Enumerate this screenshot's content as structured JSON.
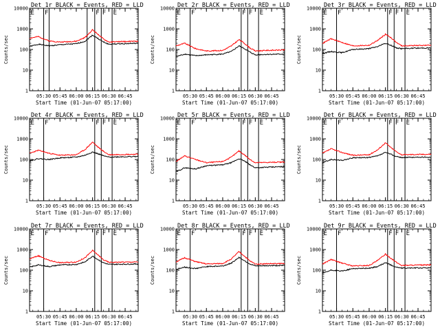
{
  "figure": {
    "background": "#ffffff",
    "panel_title_template": "Det {det} BLACK = Events, RED = LLD",
    "ylabel": "Counts/sec",
    "xlabel": "Start Time (01-Jun-07 05:17:00)"
  },
  "chart_data": [
    {
      "type": "line",
      "title": "Det 1r BLACK = Events, RED = LLD",
      "xlabel": "Start Time (01-Jun-07 05:17:00)",
      "ylabel": "Counts/sec",
      "yscale": "log",
      "xlim": [
        "05:17",
        "06:57"
      ],
      "ylim": [
        1,
        10000
      ],
      "x_ticks": [
        "05:30",
        "05:45",
        "06:00",
        "06:15",
        "06:30",
        "06:45"
      ],
      "y_ticks": [
        "1",
        "10",
        "100",
        "1000",
        "10000"
      ],
      "markers": [
        {
          "time": "05:17",
          "label": "E"
        },
        {
          "time": "05:30",
          "label": "F"
        },
        {
          "time": "05:35",
          "label": ""
        },
        {
          "time": "06:10",
          "label": ""
        },
        {
          "time": "06:17",
          "label": "F"
        },
        {
          "time": "06:23",
          "label": "F"
        },
        {
          "time": "06:33",
          "label": "E"
        }
      ],
      "series": [
        {
          "color": "#000000",
          "time": [
            "05:17",
            "05:25",
            "05:35",
            "05:45",
            "06:00",
            "06:08",
            "06:15",
            "06:20",
            "06:25",
            "06:30",
            "06:40",
            "06:57"
          ],
          "values": [
            140,
            180,
            150,
            170,
            190,
            250,
            500,
            340,
            230,
            180,
            190,
            200
          ]
        },
        {
          "color": "#ff0000",
          "time": [
            "05:17",
            "05:25",
            "05:35",
            "05:45",
            "06:00",
            "06:08",
            "06:15",
            "06:20",
            "06:25",
            "06:30",
            "06:40",
            "06:57"
          ],
          "values": [
            350,
            420,
            260,
            230,
            250,
            380,
            900,
            550,
            320,
            230,
            240,
            250
          ]
        }
      ]
    },
    {
      "type": "line",
      "title": "Det 2r BLACK = Events, RED = LLD",
      "xlabel": "Start Time (01-Jun-07 05:17:00)",
      "ylabel": "Counts/sec",
      "yscale": "log",
      "xlim": [
        "05:17",
        "06:57"
      ],
      "ylim": [
        1,
        10000
      ],
      "x_ticks": [
        "05:30",
        "05:45",
        "06:00",
        "06:15",
        "06:30",
        "06:45"
      ],
      "y_ticks": [
        "1",
        "10",
        "100",
        "1000",
        "10000"
      ],
      "markers": [
        {
          "time": "05:17",
          "label": "E"
        },
        {
          "time": "05:30",
          "label": "F"
        },
        {
          "time": "06:17",
          "label": "F"
        },
        {
          "time": "06:23",
          "label": "F"
        },
        {
          "time": "06:33",
          "label": "E"
        }
      ],
      "series": [
        {
          "color": "#000000",
          "time": [
            "05:17",
            "05:25",
            "05:35",
            "05:45",
            "06:00",
            "06:08",
            "06:15",
            "06:20",
            "06:25",
            "06:30",
            "06:40",
            "06:57"
          ],
          "values": [
            45,
            60,
            50,
            55,
            60,
            80,
            150,
            110,
            75,
            55,
            58,
            60
          ]
        },
        {
          "color": "#ff0000",
          "time": [
            "05:17",
            "05:25",
            "05:35",
            "05:45",
            "06:00",
            "06:08",
            "06:15",
            "06:20",
            "06:25",
            "06:30",
            "06:40",
            "06:57"
          ],
          "values": [
            150,
            200,
            110,
            85,
            90,
            150,
            300,
            200,
            120,
            85,
            90,
            95
          ]
        }
      ]
    },
    {
      "type": "line",
      "title": "Det 3r BLACK = Events, RED = LLD",
      "xlabel": "Start Time (01-Jun-07 05:17:00)",
      "ylabel": "Counts/sec",
      "yscale": "log",
      "xlim": [
        "05:17",
        "06:57"
      ],
      "ylim": [
        1,
        10000
      ],
      "x_ticks": [
        "05:30",
        "05:45",
        "06:00",
        "06:15",
        "06:30",
        "06:45"
      ],
      "y_ticks": [
        "1",
        "10",
        "100",
        "1000",
        "10000"
      ],
      "markers": [
        {
          "time": "05:17",
          "label": "E"
        },
        {
          "time": "05:30",
          "label": "F"
        },
        {
          "time": "06:17",
          "label": "F"
        },
        {
          "time": "06:23",
          "label": "F"
        },
        {
          "time": "06:33",
          "label": "E"
        }
      ],
      "series": [
        {
          "color": "#000000",
          "time": [
            "05:17",
            "05:25",
            "05:35",
            "05:45",
            "06:00",
            "06:08",
            "06:15",
            "06:20",
            "06:25",
            "06:30",
            "06:40",
            "06:57"
          ],
          "values": [
            65,
            80,
            70,
            100,
            110,
            140,
            200,
            160,
            120,
            110,
            115,
            120
          ]
        },
        {
          "color": "#ff0000",
          "time": [
            "05:17",
            "05:25",
            "05:35",
            "05:45",
            "06:00",
            "06:08",
            "06:15",
            "06:20",
            "06:25",
            "06:30",
            "06:40",
            "06:57"
          ],
          "values": [
            200,
            330,
            220,
            150,
            160,
            280,
            550,
            380,
            220,
            150,
            155,
            160
          ]
        }
      ]
    },
    {
      "type": "line",
      "title": "Det 4r BLACK = Events, RED = LLD",
      "xlabel": "Start Time (01-Jun-07 05:17:00)",
      "ylabel": "Counts/sec",
      "yscale": "log",
      "xlim": [
        "05:17",
        "06:57"
      ],
      "ylim": [
        1,
        10000
      ],
      "x_ticks": [
        "05:30",
        "05:45",
        "06:00",
        "06:15",
        "06:30",
        "06:45"
      ],
      "y_ticks": [
        "1",
        "10",
        "100",
        "1000",
        "10000"
      ],
      "markers": [
        {
          "time": "05:17",
          "label": "E"
        },
        {
          "time": "05:30",
          "label": "F"
        },
        {
          "time": "06:17",
          "label": "F"
        },
        {
          "time": "06:23",
          "label": "F"
        },
        {
          "time": "06:33",
          "label": "E"
        }
      ],
      "series": [
        {
          "color": "#000000",
          "time": [
            "05:17",
            "05:25",
            "05:35",
            "05:45",
            "06:00",
            "06:08",
            "06:15",
            "06:20",
            "06:25",
            "06:30",
            "06:40",
            "06:57"
          ],
          "values": [
            85,
            110,
            100,
            120,
            130,
            160,
            230,
            190,
            150,
            130,
            135,
            140
          ]
        },
        {
          "color": "#ff0000",
          "time": [
            "05:17",
            "05:25",
            "05:35",
            "05:45",
            "06:00",
            "06:08",
            "06:15",
            "06:20",
            "06:25",
            "06:30",
            "06:40",
            "06:57"
          ],
          "values": [
            200,
            280,
            200,
            160,
            170,
            300,
            700,
            400,
            250,
            170,
            175,
            180
          ]
        }
      ]
    },
    {
      "type": "line",
      "title": "Det 5r BLACK = Events, RED = LLD",
      "xlabel": "Start Time (01-Jun-07 05:17:00)",
      "ylabel": "Counts/sec",
      "yscale": "log",
      "xlim": [
        "05:17",
        "06:57"
      ],
      "ylim": [
        1,
        10000
      ],
      "x_ticks": [
        "05:30",
        "05:45",
        "06:00",
        "06:15",
        "06:30",
        "06:45"
      ],
      "y_ticks": [
        "1",
        "10",
        "100",
        "1000",
        "10000"
      ],
      "markers": [
        {
          "time": "05:17",
          "label": "E"
        },
        {
          "time": "05:30",
          "label": "F"
        },
        {
          "time": "06:17",
          "label": "F"
        },
        {
          "time": "06:23",
          "label": "F"
        },
        {
          "time": "06:33",
          "label": "E"
        }
      ],
      "series": [
        {
          "color": "#000000",
          "time": [
            "05:17",
            "05:25",
            "05:35",
            "05:45",
            "06:00",
            "06:08",
            "06:15",
            "06:20",
            "06:25",
            "06:30",
            "06:40",
            "06:57"
          ],
          "values": [
            25,
            40,
            35,
            50,
            55,
            70,
            110,
            85,
            55,
            40,
            42,
            45
          ]
        },
        {
          "color": "#ff0000",
          "time": [
            "05:17",
            "05:25",
            "05:35",
            "05:45",
            "06:00",
            "06:08",
            "06:15",
            "06:20",
            "06:25",
            "06:30",
            "06:40",
            "06:57"
          ],
          "values": [
            80,
            150,
            100,
            70,
            80,
            130,
            260,
            170,
            100,
            70,
            72,
            75
          ]
        }
      ]
    },
    {
      "type": "line",
      "title": "Det 6r BLACK = Events, RED = LLD",
      "xlabel": "Start Time (01-Jun-07 05:17:00)",
      "ylabel": "Counts/sec",
      "yscale": "log",
      "xlim": [
        "05:17",
        "06:57"
      ],
      "ylim": [
        1,
        10000
      ],
      "x_ticks": [
        "05:30",
        "05:45",
        "06:00",
        "06:15",
        "06:30",
        "06:45"
      ],
      "y_ticks": [
        "1",
        "10",
        "100",
        "1000",
        "10000"
      ],
      "markers": [
        {
          "time": "05:17",
          "label": "E"
        },
        {
          "time": "05:30",
          "label": "F"
        },
        {
          "time": "06:17",
          "label": "F"
        },
        {
          "time": "06:23",
          "label": "F"
        },
        {
          "time": "06:33",
          "label": "E"
        }
      ],
      "series": [
        {
          "color": "#000000",
          "time": [
            "05:17",
            "05:25",
            "05:35",
            "05:45",
            "06:00",
            "06:08",
            "06:15",
            "06:20",
            "06:25",
            "06:30",
            "06:40",
            "06:57"
          ],
          "values": [
            70,
            100,
            90,
            120,
            125,
            150,
            220,
            180,
            140,
            125,
            128,
            130
          ]
        },
        {
          "color": "#ff0000",
          "time": [
            "05:17",
            "05:25",
            "05:35",
            "05:45",
            "06:00",
            "06:08",
            "06:15",
            "06:20",
            "06:25",
            "06:30",
            "06:40",
            "06:57"
          ],
          "values": [
            200,
            330,
            220,
            160,
            170,
            300,
            650,
            380,
            240,
            170,
            175,
            180
          ]
        }
      ]
    },
    {
      "type": "line",
      "title": "Det 7r BLACK = Events, RED = LLD",
      "xlabel": "Start Time (01-Jun-07 05:17:00)",
      "ylabel": "Counts/sec",
      "yscale": "log",
      "xlim": [
        "05:17",
        "06:57"
      ],
      "ylim": [
        1,
        10000
      ],
      "x_ticks": [
        "05:30",
        "05:45",
        "06:00",
        "06:15",
        "06:30",
        "06:45"
      ],
      "y_ticks": [
        "1",
        "10",
        "100",
        "1000",
        "10000"
      ],
      "markers": [
        {
          "time": "05:17",
          "label": "E"
        },
        {
          "time": "05:30",
          "label": "F"
        },
        {
          "time": "06:17",
          "label": "F"
        },
        {
          "time": "06:23",
          "label": "F"
        },
        {
          "time": "06:33",
          "label": "E"
        }
      ],
      "series": [
        {
          "color": "#000000",
          "time": [
            "05:17",
            "05:25",
            "05:35",
            "05:45",
            "06:00",
            "06:08",
            "06:15",
            "06:20",
            "06:25",
            "06:30",
            "06:40",
            "06:57"
          ],
          "values": [
            140,
            180,
            150,
            180,
            190,
            250,
            480,
            330,
            230,
            190,
            195,
            200
          ]
        },
        {
          "color": "#ff0000",
          "time": [
            "05:17",
            "05:25",
            "05:35",
            "05:45",
            "06:00",
            "06:08",
            "06:15",
            "06:20",
            "06:25",
            "06:30",
            "06:40",
            "06:57"
          ],
          "values": [
            350,
            500,
            300,
            230,
            250,
            400,
            900,
            550,
            320,
            240,
            245,
            250
          ]
        }
      ]
    },
    {
      "type": "line",
      "title": "Det 8r BLACK = Events, RED = LLD",
      "xlabel": "Start Time (01-Jun-07 05:17:00)",
      "ylabel": "Counts/sec",
      "yscale": "log",
      "xlim": [
        "05:17",
        "06:57"
      ],
      "ylim": [
        1,
        10000
      ],
      "x_ticks": [
        "05:30",
        "05:45",
        "06:00",
        "06:15",
        "06:30",
        "06:45"
      ],
      "y_ticks": [
        "1",
        "10",
        "100",
        "1000",
        "10000"
      ],
      "markers": [
        {
          "time": "05:17",
          "label": "E"
        },
        {
          "time": "05:30",
          "label": "F"
        },
        {
          "time": "06:17",
          "label": "F"
        },
        {
          "time": "06:23",
          "label": "F"
        },
        {
          "time": "06:33",
          "label": "E"
        }
      ],
      "series": [
        {
          "color": "#000000",
          "time": [
            "05:17",
            "05:25",
            "05:35",
            "05:45",
            "06:00",
            "06:08",
            "06:15",
            "06:20",
            "06:25",
            "06:30",
            "06:40",
            "06:57"
          ],
          "values": [
            110,
            140,
            120,
            150,
            160,
            220,
            420,
            290,
            200,
            160,
            165,
            170
          ]
        },
        {
          "color": "#ff0000",
          "time": [
            "05:17",
            "05:25",
            "05:35",
            "05:45",
            "06:00",
            "06:08",
            "06:15",
            "06:20",
            "06:25",
            "06:30",
            "06:40",
            "06:57"
          ],
          "values": [
            250,
            400,
            260,
            200,
            210,
            350,
            800,
            480,
            280,
            200,
            205,
            210
          ]
        }
      ]
    },
    {
      "type": "line",
      "title": "Det 9r BLACK = Events, RED = LLD",
      "xlabel": "Start Time (01-Jun-07 05:17:00)",
      "ylabel": "Counts/sec",
      "yscale": "log",
      "xlim": [
        "05:17",
        "06:57"
      ],
      "ylim": [
        1,
        10000
      ],
      "x_ticks": [
        "05:30",
        "05:45",
        "06:00",
        "06:15",
        "06:30",
        "06:45"
      ],
      "y_ticks": [
        "1",
        "10",
        "100",
        "1000",
        "10000"
      ],
      "markers": [
        {
          "time": "05:17",
          "label": "E"
        },
        {
          "time": "05:30",
          "label": "F"
        },
        {
          "time": "06:17",
          "label": "F"
        },
        {
          "time": "06:23",
          "label": "F"
        },
        {
          "time": "06:33",
          "label": "E"
        }
      ],
      "series": [
        {
          "color": "#000000",
          "time": [
            "05:17",
            "05:25",
            "05:35",
            "05:45",
            "06:00",
            "06:08",
            "06:15",
            "06:20",
            "06:25",
            "06:30",
            "06:40",
            "06:57"
          ],
          "values": [
            70,
            100,
            90,
            120,
            125,
            150,
            230,
            180,
            140,
            125,
            128,
            130
          ]
        },
        {
          "color": "#ff0000",
          "time": [
            "05:17",
            "05:25",
            "05:35",
            "05:45",
            "06:00",
            "06:08",
            "06:15",
            "06:20",
            "06:25",
            "06:30",
            "06:40",
            "06:57"
          ],
          "values": [
            200,
            330,
            220,
            160,
            170,
            300,
            600,
            380,
            240,
            170,
            175,
            180
          ]
        }
      ]
    }
  ]
}
